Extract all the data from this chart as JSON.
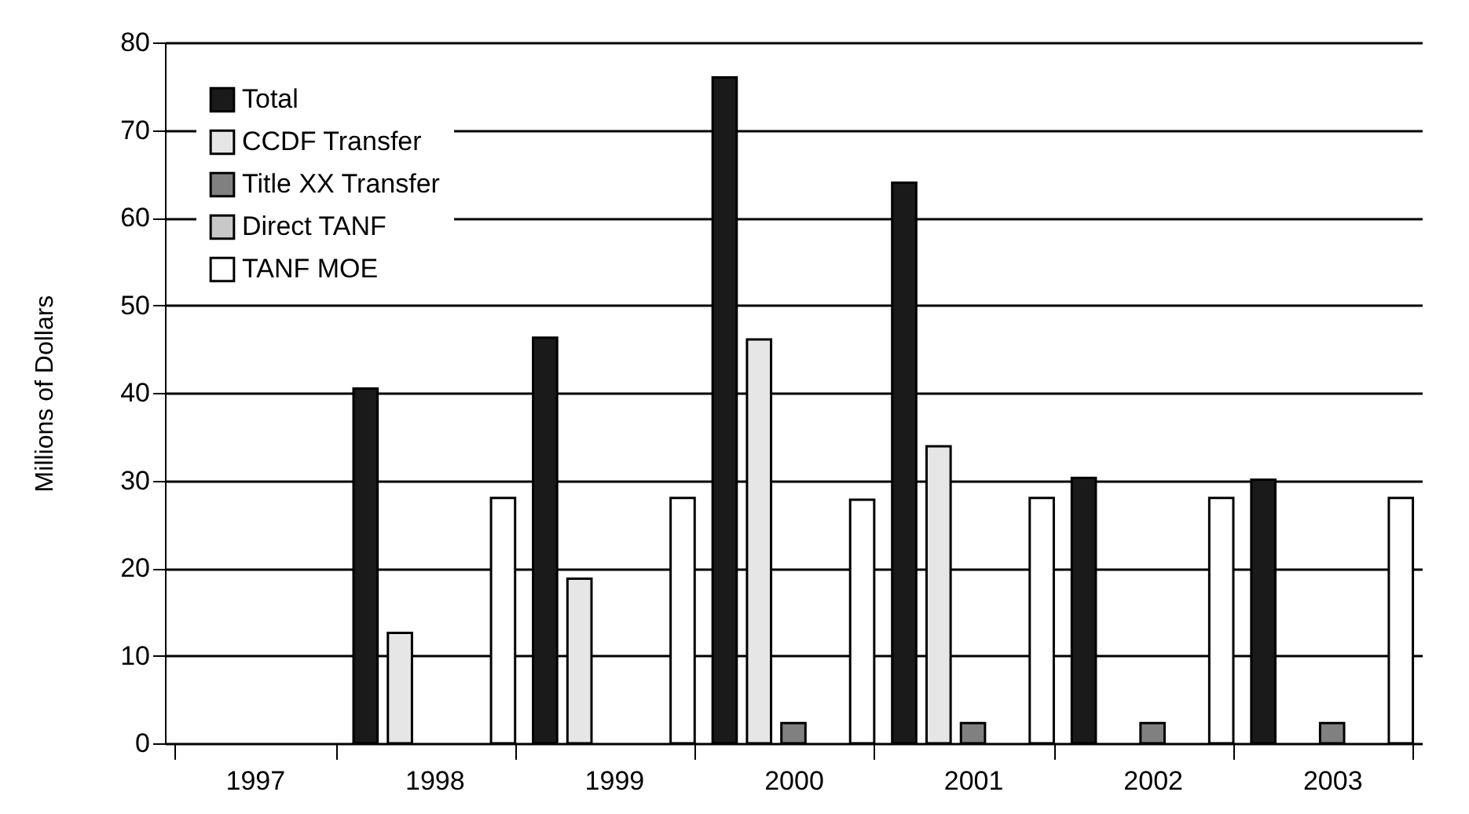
{
  "chart_data": {
    "type": "bar",
    "ylabel": "Millions of Dollars",
    "categories": [
      "1997",
      "1998",
      "1999",
      "2000",
      "2001",
      "2002",
      "2003"
    ],
    "series": [
      {
        "name": "Total",
        "color": "#1a1a1a",
        "values": [
          null,
          40.5,
          46.3,
          76,
          64,
          30.3,
          30.1
        ]
      },
      {
        "name": "CCDF Transfer",
        "color": "#e6e6e6",
        "values": [
          null,
          12.6,
          18.8,
          46.1,
          33.9,
          null,
          null
        ]
      },
      {
        "name": "Title XX Transfer",
        "color": "#808080",
        "values": [
          null,
          null,
          null,
          2.3,
          2.3,
          2.3,
          2.3
        ]
      },
      {
        "name": "Direct TANF",
        "color": "#c8c8c8",
        "values": [
          null,
          null,
          null,
          null,
          null,
          null,
          null
        ]
      },
      {
        "name": "TANF MOE",
        "color": "#ffffff",
        "values": [
          null,
          28,
          28,
          27.8,
          28,
          28,
          28
        ]
      }
    ],
    "ylim": [
      0,
      80
    ],
    "yticks": [
      0,
      10,
      20,
      30,
      40,
      50,
      60,
      70,
      80
    ],
    "grid": "y",
    "legend": "top left"
  }
}
